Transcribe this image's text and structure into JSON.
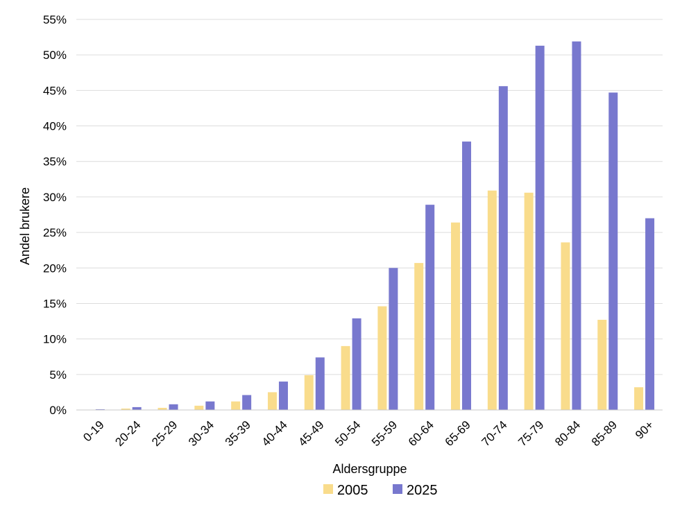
{
  "chart_data": {
    "type": "bar",
    "title": "",
    "xlabel": "Aldersgruppe",
    "ylabel": "Andel brukere",
    "ylim": [
      0,
      55
    ],
    "y_ticks": [
      "0%",
      "5%",
      "10%",
      "15%",
      "20%",
      "25%",
      "30%",
      "35%",
      "40%",
      "45%",
      "50%",
      "55%"
    ],
    "y_tick_values": [
      0,
      5,
      10,
      15,
      20,
      25,
      30,
      35,
      40,
      45,
      50,
      55
    ],
    "grid": true,
    "legend_position": "bottom",
    "categories": [
      "0-19",
      "20-24",
      "25-29",
      "30-34",
      "35-39",
      "40-44",
      "45-49",
      "50-54",
      "55-59",
      "60-64",
      "65-69",
      "70-74",
      "75-79",
      "80-84",
      "85-89",
      "90+"
    ],
    "series": [
      {
        "name": "2005",
        "color": "#f9dc8c",
        "values": [
          0.0,
          0.2,
          0.3,
          0.6,
          1.2,
          2.5,
          4.9,
          9.0,
          14.6,
          20.7,
          26.4,
          30.9,
          30.6,
          23.6,
          12.7,
          3.2
        ]
      },
      {
        "name": "2025",
        "color": "#7878ce",
        "values": [
          0.1,
          0.4,
          0.8,
          1.2,
          2.1,
          4.0,
          7.4,
          12.9,
          20.0,
          28.9,
          37.8,
          45.6,
          51.3,
          51.9,
          44.7,
          27.0
        ]
      }
    ]
  }
}
